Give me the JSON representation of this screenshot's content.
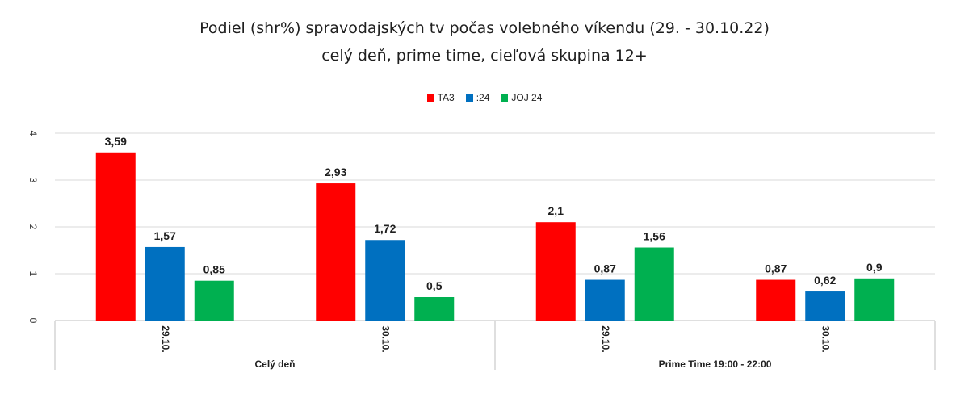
{
  "chart_data": {
    "type": "bar",
    "title": "Podiel (shr%) spravodajských tv počas volebného víkendu (29. - 30.10.22)",
    "subtitle": "celý deň, prime time, cieľová skupina 12+",
    "groups": [
      {
        "label": "Celý deň",
        "categories": [
          "29.10.",
          "30.10."
        ]
      },
      {
        "label": "Prime Time 19:00 - 22:00",
        "categories": [
          "29.10.",
          "30.10."
        ]
      }
    ],
    "series": [
      {
        "name": "TA3",
        "color": "#ff0000",
        "values": [
          3.59,
          2.93,
          2.1,
          0.87
        ],
        "labels": [
          "3,59",
          "2,93",
          "2,1",
          "0,87"
        ]
      },
      {
        "name": ":24",
        "color": "#0070c0",
        "values": [
          1.57,
          1.72,
          0.87,
          0.62
        ],
        "labels": [
          "1,57",
          "1,72",
          "0,87",
          "0,62"
        ]
      },
      {
        "name": "JOJ 24",
        "color": "#00b050",
        "values": [
          0.85,
          0.5,
          1.56,
          0.9
        ],
        "labels": [
          "0,85",
          "0,5",
          "1,56",
          "0,9"
        ]
      }
    ],
    "yticks": [
      0,
      1,
      2,
      3,
      4
    ],
    "ylim": [
      0,
      4.2
    ],
    "grid": true,
    "legend_position": "top-center"
  }
}
